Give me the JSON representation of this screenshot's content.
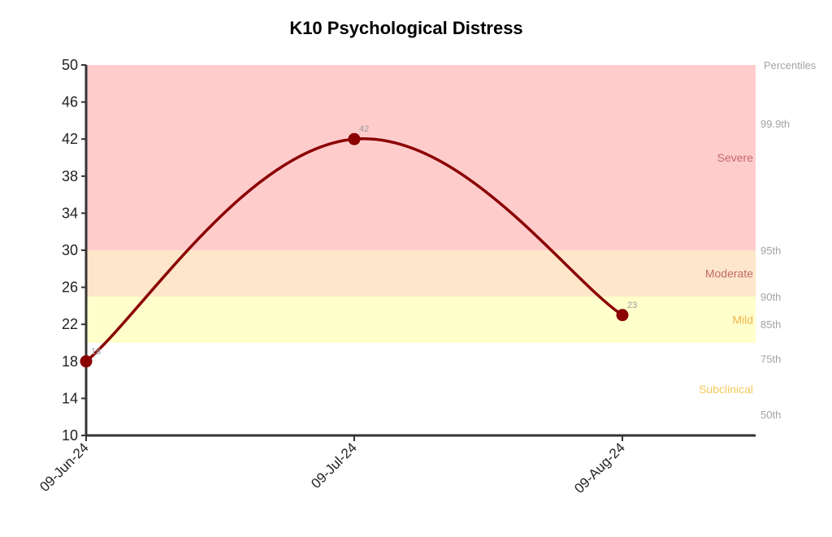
{
  "chart_data": {
    "type": "line",
    "title": "K10 Psychological Distress",
    "xlabel": "",
    "ylabel": "",
    "ylim": [
      10,
      50
    ],
    "y_ticks": [
      10,
      14,
      18,
      22,
      26,
      30,
      34,
      38,
      42,
      46,
      50
    ],
    "categories": [
      "09-Jun-24",
      "09-Jul-24",
      "09-Aug-24"
    ],
    "series": [
      {
        "values": [
          18,
          42,
          23
        ],
        "color": "#8b0000",
        "point_labels": [
          "18",
          "42",
          "23"
        ]
      }
    ],
    "bands": [
      {
        "label": "Severe",
        "from": 30,
        "to": 50,
        "fill": "#ffcccc",
        "label_color": "#c26a6a"
      },
      {
        "label": "Moderate",
        "from": 25,
        "to": 30,
        "fill": "#fde6c9",
        "label_color": "#c26a6a"
      },
      {
        "label": "Mild",
        "from": 20,
        "to": 25,
        "fill": "#ffffcc",
        "label_color": "#f0b64a"
      },
      {
        "label": "Subclinical",
        "from": 10,
        "to": 20,
        "fill": "#ffffff",
        "label_color": "#f5c95a"
      }
    ],
    "percentiles": {
      "header": "Percentiles",
      "marks": [
        {
          "label": "99.9th",
          "value": 43.7
        },
        {
          "label": "95th",
          "value": 30
        },
        {
          "label": "90th",
          "value": 25
        },
        {
          "label": "85th",
          "value": 22
        },
        {
          "label": "75th",
          "value": 18.3
        },
        {
          "label": "50th",
          "value": 12.3
        }
      ]
    },
    "grid": false,
    "legend": "none"
  }
}
